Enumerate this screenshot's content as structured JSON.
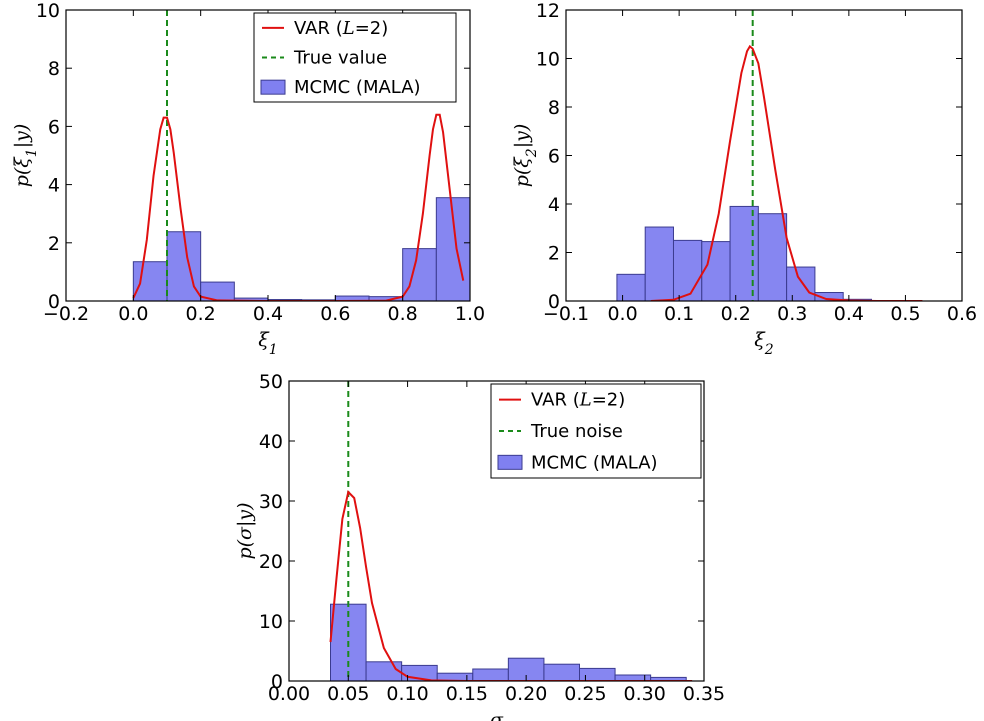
{
  "chart_data": [
    {
      "type": "histogram+line",
      "xlabel": "ξ1",
      "ylabel": "p(ξ1|y)",
      "xlim": [
        -0.2,
        1.0
      ],
      "ylim": [
        0,
        10
      ],
      "xticks": [
        "−0.2",
        "0.0",
        "0.2",
        "0.4",
        "0.6",
        "0.8",
        "1.0"
      ],
      "xtick_values": [
        -0.2,
        0.0,
        0.2,
        0.4,
        0.6,
        0.8,
        1.0
      ],
      "yticks": [
        "0",
        "2",
        "4",
        "6",
        "8",
        "10"
      ],
      "ytick_values": [
        0,
        2,
        4,
        6,
        8,
        10
      ],
      "legend": [
        "VAR (L=2)",
        "True value",
        "MCMC (MALA)"
      ],
      "legend_position": "top-right",
      "true_value": 0.1,
      "histogram": {
        "name": "MCMC (MALA)",
        "bin_edges": [
          0.0,
          0.1,
          0.2,
          0.3,
          0.4,
          0.5,
          0.6,
          0.7,
          0.8,
          0.9,
          1.0
        ],
        "values": [
          1.35,
          2.38,
          0.65,
          0.1,
          0.05,
          0.04,
          0.17,
          0.15,
          1.8,
          3.55
        ]
      },
      "curve": {
        "name": "VAR (L=2)",
        "x": [
          0.0,
          0.02,
          0.04,
          0.06,
          0.08,
          0.09,
          0.1,
          0.11,
          0.12,
          0.14,
          0.16,
          0.18,
          0.2,
          0.25,
          0.4,
          0.6,
          0.75,
          0.8,
          0.82,
          0.84,
          0.86,
          0.88,
          0.89,
          0.9,
          0.91,
          0.92,
          0.94,
          0.96,
          0.98
        ],
        "y": [
          0.1,
          0.6,
          2.1,
          4.3,
          5.9,
          6.3,
          6.3,
          5.9,
          5.1,
          3.2,
          1.5,
          0.5,
          0.15,
          0.02,
          0.0,
          0.0,
          0.01,
          0.15,
          0.5,
          1.4,
          3.0,
          5.0,
          5.9,
          6.4,
          6.4,
          5.8,
          3.8,
          1.8,
          0.7
        ]
      }
    },
    {
      "type": "histogram+line",
      "xlabel": "ξ2",
      "ylabel": "p(ξ2|y)",
      "xlim": [
        -0.1,
        0.6
      ],
      "ylim": [
        0,
        12
      ],
      "xticks": [
        "−0.1",
        "0.0",
        "0.1",
        "0.2",
        "0.3",
        "0.4",
        "0.5",
        "0.6"
      ],
      "xtick_values": [
        -0.1,
        0.0,
        0.1,
        0.2,
        0.3,
        0.4,
        0.5,
        0.6
      ],
      "yticks": [
        "0",
        "2",
        "4",
        "6",
        "8",
        "10",
        "12"
      ],
      "ytick_values": [
        0,
        2,
        4,
        6,
        8,
        10,
        12
      ],
      "legend": [],
      "true_value": 0.23,
      "histogram": {
        "name": "MCMC (MALA)",
        "bin_edges": [
          -0.01,
          0.04,
          0.09,
          0.14,
          0.19,
          0.24,
          0.29,
          0.34,
          0.39,
          0.44
        ],
        "values": [
          1.1,
          3.05,
          2.5,
          2.45,
          3.9,
          3.6,
          1.4,
          0.35,
          0.07
        ]
      },
      "curve": {
        "name": "VAR (L=2)",
        "x": [
          0.05,
          0.09,
          0.12,
          0.15,
          0.17,
          0.19,
          0.21,
          0.22,
          0.225,
          0.23,
          0.24,
          0.25,
          0.27,
          0.29,
          0.31,
          0.33,
          0.36,
          0.4,
          0.45,
          0.53
        ],
        "y": [
          0.0,
          0.05,
          0.3,
          1.5,
          3.6,
          6.6,
          9.4,
          10.3,
          10.5,
          10.4,
          9.8,
          8.4,
          5.4,
          2.6,
          1.0,
          0.35,
          0.08,
          0.02,
          0.0,
          0.0
        ]
      }
    },
    {
      "type": "histogram+line",
      "xlabel": "σ",
      "ylabel": "p(σ|y)",
      "xlim": [
        0.0,
        0.35
      ],
      "ylim": [
        0,
        50
      ],
      "xticks": [
        "0.00",
        "0.05",
        "0.10",
        "0.15",
        "0.20",
        "0.25",
        "0.30",
        "0.35"
      ],
      "xtick_values": [
        0.0,
        0.05,
        0.1,
        0.15,
        0.2,
        0.25,
        0.3,
        0.35
      ],
      "yticks": [
        "0",
        "10",
        "20",
        "30",
        "40",
        "50"
      ],
      "ytick_values": [
        0,
        10,
        20,
        30,
        40,
        50
      ],
      "legend": [
        "VAR (L=2)",
        "True noise",
        "MCMC (MALA)"
      ],
      "legend_position": "top-right",
      "true_value": 0.05,
      "histogram": {
        "name": "MCMC (MALA)",
        "bin_edges": [
          0.035,
          0.065,
          0.095,
          0.125,
          0.155,
          0.185,
          0.215,
          0.245,
          0.275,
          0.305,
          0.335
        ],
        "values": [
          12.8,
          3.2,
          2.6,
          1.3,
          2.0,
          3.8,
          2.8,
          2.1,
          1.0,
          0.6
        ]
      },
      "curve": {
        "name": "VAR (L=2)",
        "x": [
          0.035,
          0.04,
          0.045,
          0.05,
          0.055,
          0.06,
          0.065,
          0.07,
          0.08,
          0.09,
          0.1,
          0.12,
          0.15,
          0.2,
          0.25,
          0.3,
          0.34
        ],
        "y": [
          6.5,
          17.0,
          27.0,
          31.5,
          30.5,
          25.5,
          19.0,
          13.0,
          5.5,
          2.0,
          0.7,
          0.1,
          0.0,
          0.0,
          0.0,
          0.0,
          0.0
        ]
      }
    }
  ]
}
